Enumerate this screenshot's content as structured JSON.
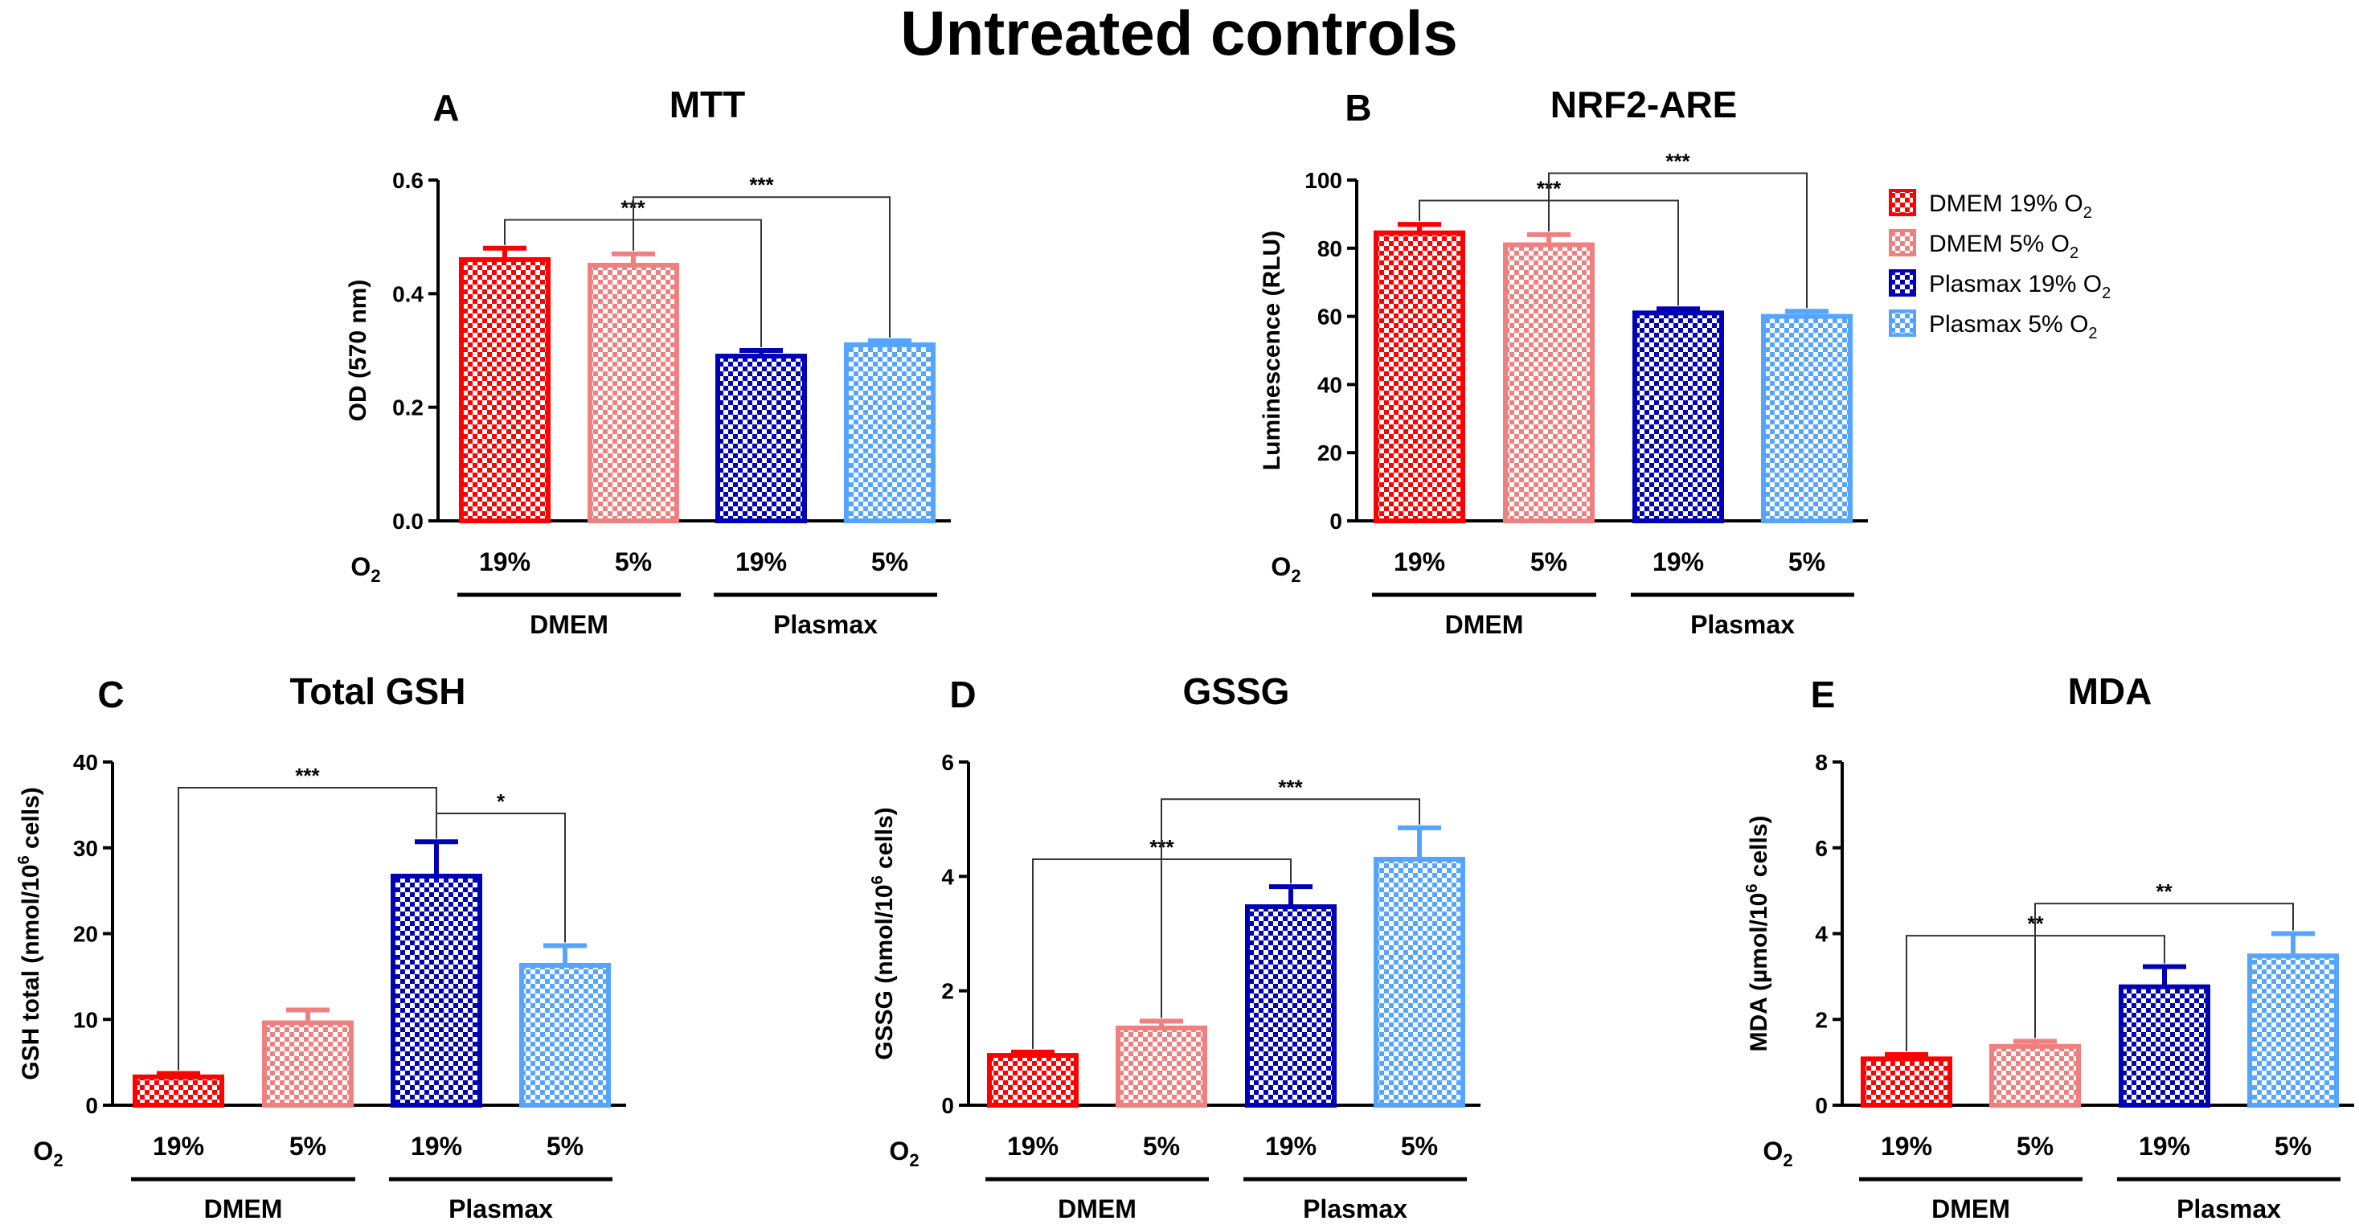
{
  "figure_title": "Untreated controls",
  "legend": [
    {
      "label": "DMEM 19% O",
      "sub": "2",
      "color": "#ff0000",
      "fill": "#ff0000"
    },
    {
      "label": "DMEM 5% O",
      "sub": "2",
      "color": "#f08080",
      "fill": "#f08080"
    },
    {
      "label": "Plasmax 19% O",
      "sub": "2",
      "color": "#0000b4",
      "fill": "#0000b4"
    },
    {
      "label": "Plasmax 5% O",
      "sub": "2",
      "color": "#55a5ff",
      "fill": "#55a5ff"
    }
  ],
  "colors": [
    "#ff0000",
    "#f08080",
    "#0000b4",
    "#55a5ff"
  ],
  "chart_data": [
    {
      "panel": "A",
      "type": "bar",
      "title": "MTT",
      "ylabel": "OD (570 nm)",
      "ylim": [
        0,
        0.6
      ],
      "yticks": [
        "0.0",
        "0.2",
        "0.4",
        "0.6"
      ],
      "yticks_val": [
        0,
        0.2,
        0.4,
        0.6
      ],
      "categories": [
        "19%",
        "5%",
        "19%",
        "5%"
      ],
      "x_prefix": "O",
      "x_prefix_sub": "2",
      "groups": [
        "DMEM",
        "Plasmax"
      ],
      "values": [
        0.46,
        0.45,
        0.29,
        0.31
      ],
      "errors": [
        0.02,
        0.02,
        0.01,
        0.007
      ],
      "significance": [
        {
          "from": 0,
          "to": 2,
          "label": "***",
          "level": 0.53
        },
        {
          "from": 1,
          "to": 3,
          "label": "***",
          "level": 0.57
        }
      ]
    },
    {
      "panel": "B",
      "type": "bar",
      "title": "NRF2-ARE",
      "ylabel": "Luminescence (RLU)",
      "ylim": [
        0,
        100
      ],
      "yticks": [
        "0",
        "20",
        "40",
        "60",
        "80",
        "100"
      ],
      "yticks_val": [
        0,
        20,
        40,
        60,
        80,
        100
      ],
      "categories": [
        "19%",
        "5%",
        "19%",
        "5%"
      ],
      "x_prefix": "O",
      "x_prefix_sub": "2",
      "groups": [
        "DMEM",
        "Plasmax"
      ],
      "values": [
        84.5,
        81,
        61,
        60
      ],
      "errors": [
        2.5,
        3,
        1.2,
        1.5
      ],
      "significance": [
        {
          "from": 0,
          "to": 2,
          "label": "***",
          "level": 94
        },
        {
          "from": 1,
          "to": 3,
          "label": "***",
          "level": 102
        }
      ]
    },
    {
      "panel": "C",
      "type": "bar",
      "title": "Total GSH",
      "ylabel": "GSH total (nmol/10",
      "ylabel_sup": "6",
      "ylabel_end": " cells)",
      "ylim": [
        0,
        40
      ],
      "yticks": [
        "0",
        "10",
        "20",
        "30",
        "40"
      ],
      "yticks_val": [
        0,
        10,
        20,
        30,
        40
      ],
      "categories": [
        "19%",
        "5%",
        "19%",
        "5%"
      ],
      "x_prefix": "O",
      "x_prefix_sub": "2",
      "groups": [
        "DMEM",
        "Plasmax"
      ],
      "values": [
        3.3,
        9.6,
        26.7,
        16.3
      ],
      "errors": [
        0.4,
        1.5,
        4,
        2.3
      ],
      "significance": [
        {
          "from": 0,
          "to": 2,
          "label": "***",
          "level": 37
        },
        {
          "from": 2,
          "to": 3,
          "label": "*",
          "level": 34
        }
      ]
    },
    {
      "panel": "D",
      "type": "bar",
      "title": "GSSG",
      "ylabel": "GSSG (nmol/10",
      "ylabel_sup": "6",
      "ylabel_end": " cells)",
      "ylim": [
        0,
        6
      ],
      "yticks": [
        "0",
        "2",
        "4",
        "6"
      ],
      "yticks_val": [
        0,
        2,
        4,
        6
      ],
      "categories": [
        "19%",
        "5%",
        "19%",
        "5%"
      ],
      "x_prefix": "O",
      "x_prefix_sub": "2",
      "groups": [
        "DMEM",
        "Plasmax"
      ],
      "values": [
        0.87,
        1.35,
        3.47,
        4.3
      ],
      "errors": [
        0.06,
        0.12,
        0.35,
        0.55
      ],
      "significance": [
        {
          "from": 0,
          "to": 2,
          "label": "***",
          "level": 4.3
        },
        {
          "from": 1,
          "to": 3,
          "label": "***",
          "level": 5.35
        }
      ]
    },
    {
      "panel": "E",
      "type": "bar",
      "title": "MDA",
      "ylabel": "MDA (µmol/10",
      "ylabel_sup": "6",
      "ylabel_end": " cells)",
      "ylim": [
        0,
        8
      ],
      "yticks": [
        "0",
        "2",
        "4",
        "6",
        "8"
      ],
      "yticks_val": [
        0,
        2,
        4,
        6,
        8
      ],
      "categories": [
        "19%",
        "5%",
        "19%",
        "5%"
      ],
      "x_prefix": "O",
      "x_prefix_sub": "2",
      "groups": [
        "DMEM",
        "Plasmax"
      ],
      "values": [
        1.08,
        1.37,
        2.76,
        3.48
      ],
      "errors": [
        0.1,
        0.12,
        0.47,
        0.52
      ],
      "significance": [
        {
          "from": 0,
          "to": 2,
          "label": "**",
          "level": 3.95
        },
        {
          "from": 1,
          "to": 3,
          "label": "**",
          "level": 4.7
        }
      ]
    }
  ]
}
